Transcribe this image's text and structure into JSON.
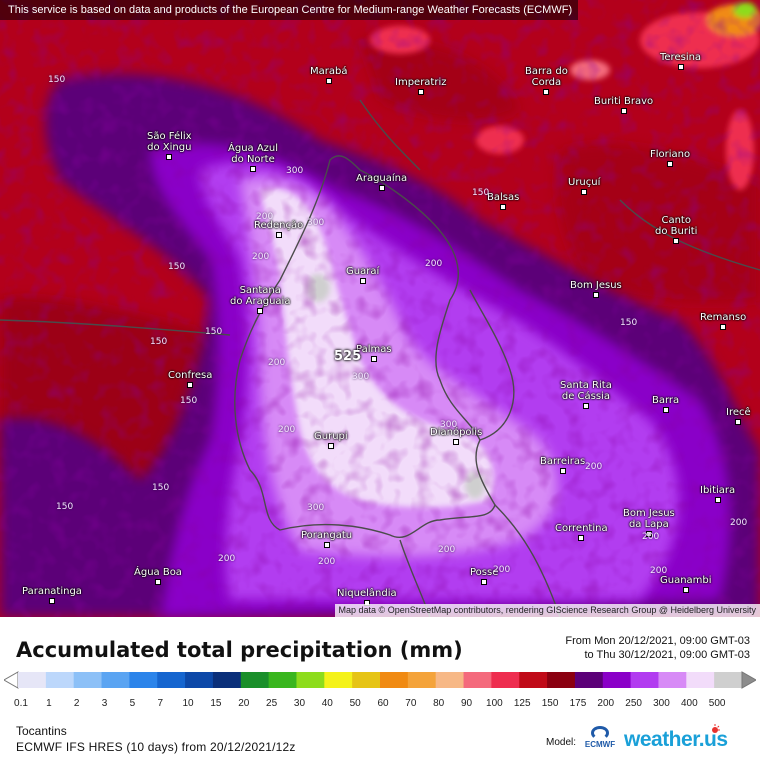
{
  "map": {
    "disclaimer": "This service is based on data and products of the European Centre for Medium-range Weather Forecasts (ECMWF)",
    "attribution": "Map data © OpenStreetMap contributors, rendering GIScience Research Group @ Heidelberg University",
    "max_value_label": "525",
    "cities": [
      {
        "name": "Marabá"
      },
      {
        "name": "Imperatriz"
      },
      {
        "name": "Barra do\nCorda"
      },
      {
        "name": "Teresina"
      },
      {
        "name": "São Félix\ndo Xingu"
      },
      {
        "name": "Água Azul\ndo Norte"
      },
      {
        "name": "Buriti Bravo"
      },
      {
        "name": "Floriano"
      },
      {
        "name": "Araguaína"
      },
      {
        "name": "Uruçuí"
      },
      {
        "name": "Balsas"
      },
      {
        "name": "Redenção"
      },
      {
        "name": "Canto\ndo Buriti"
      },
      {
        "name": "Guaraí"
      },
      {
        "name": "Bom Jesus"
      },
      {
        "name": "Santana\ndo Araguaia"
      },
      {
        "name": "Remanso"
      },
      {
        "name": "Palmas"
      },
      {
        "name": "Confresa"
      },
      {
        "name": "Santa Rita\nde Cássia"
      },
      {
        "name": "Barra"
      },
      {
        "name": "Irecê"
      },
      {
        "name": "Gurupi"
      },
      {
        "name": "Dianópolis"
      },
      {
        "name": "Barreiras"
      },
      {
        "name": "Ibitiara"
      },
      {
        "name": "Correntina"
      },
      {
        "name": "Bom Jesus\nda Lapa"
      },
      {
        "name": "Porangatu"
      },
      {
        "name": "Água Boa"
      },
      {
        "name": "Posse"
      },
      {
        "name": "Guanambi"
      },
      {
        "name": "Paranatinga"
      },
      {
        "name": "Niquelândia"
      }
    ],
    "contour_labels": [
      "300",
      "300",
      "200",
      "200",
      "200",
      "150",
      "150",
      "150",
      "200",
      "300",
      "200",
      "150",
      "150",
      "150",
      "300",
      "200",
      "200",
      "300",
      "200",
      "150",
      "200",
      "200",
      "200",
      "200",
      "200",
      "150",
      "150"
    ]
  },
  "legend": {
    "title": "Accumulated total precipitation (mm)",
    "period_from": "From Mon 20/12/2021, 09:00 GMT-03",
    "period_to": "to Thu 30/12/2021, 09:00 GMT-03",
    "scale": [
      {
        "label": "0.1",
        "color": "#e6e6f7"
      },
      {
        "label": "1",
        "color": "#bcd7fb"
      },
      {
        "label": "2",
        "color": "#8cc0f7"
      },
      {
        "label": "3",
        "color": "#5aa4f2"
      },
      {
        "label": "5",
        "color": "#2b84ea"
      },
      {
        "label": "7",
        "color": "#1565cf"
      },
      {
        "label": "10",
        "color": "#0c48a8"
      },
      {
        "label": "15",
        "color": "#0a2f7a"
      },
      {
        "label": "20",
        "color": "#1a8f2a"
      },
      {
        "label": "25",
        "color": "#39b61e"
      },
      {
        "label": "30",
        "color": "#8ddc1c"
      },
      {
        "label": "40",
        "color": "#f4f21a"
      },
      {
        "label": "50",
        "color": "#e6c415"
      },
      {
        "label": "60",
        "color": "#f08a12"
      },
      {
        "label": "70",
        "color": "#f4a33a"
      },
      {
        "label": "80",
        "color": "#f7b886"
      },
      {
        "label": "90",
        "color": "#f46a7c"
      },
      {
        "label": "100",
        "color": "#ee2d4f"
      },
      {
        "label": "125",
        "color": "#c00a18"
      },
      {
        "label": "150",
        "color": "#8a0010"
      },
      {
        "label": "175",
        "color": "#5c0078"
      },
      {
        "label": "200",
        "color": "#8a00c8"
      },
      {
        "label": "250",
        "color": "#b23cf0"
      },
      {
        "label": "300",
        "color": "#d78af6"
      },
      {
        "label": "400",
        "color": "#f2dcfa"
      },
      {
        "label": "500",
        "color": "#cfcfcf"
      }
    ],
    "region": "Tocantins",
    "model_run": "ECMWF IFS HRES (10 days) from 20/12/2021/12z",
    "model_label": "Model:",
    "ecmwf_logo_text": "ECMWF",
    "brand": "weather.us"
  },
  "colors": {
    "base_red": "#b3001b",
    "dark_red": "#8a0010",
    "purple": "#5c0078",
    "violet": "#8a00c8",
    "lilac": "#b23cf0",
    "light_lilac": "#d78af6",
    "pale": "#f2dcfa",
    "grey": "#cfcfcf",
    "pink": "#ee2d4f",
    "orange": "#f08a12",
    "green": "#39b61e"
  }
}
